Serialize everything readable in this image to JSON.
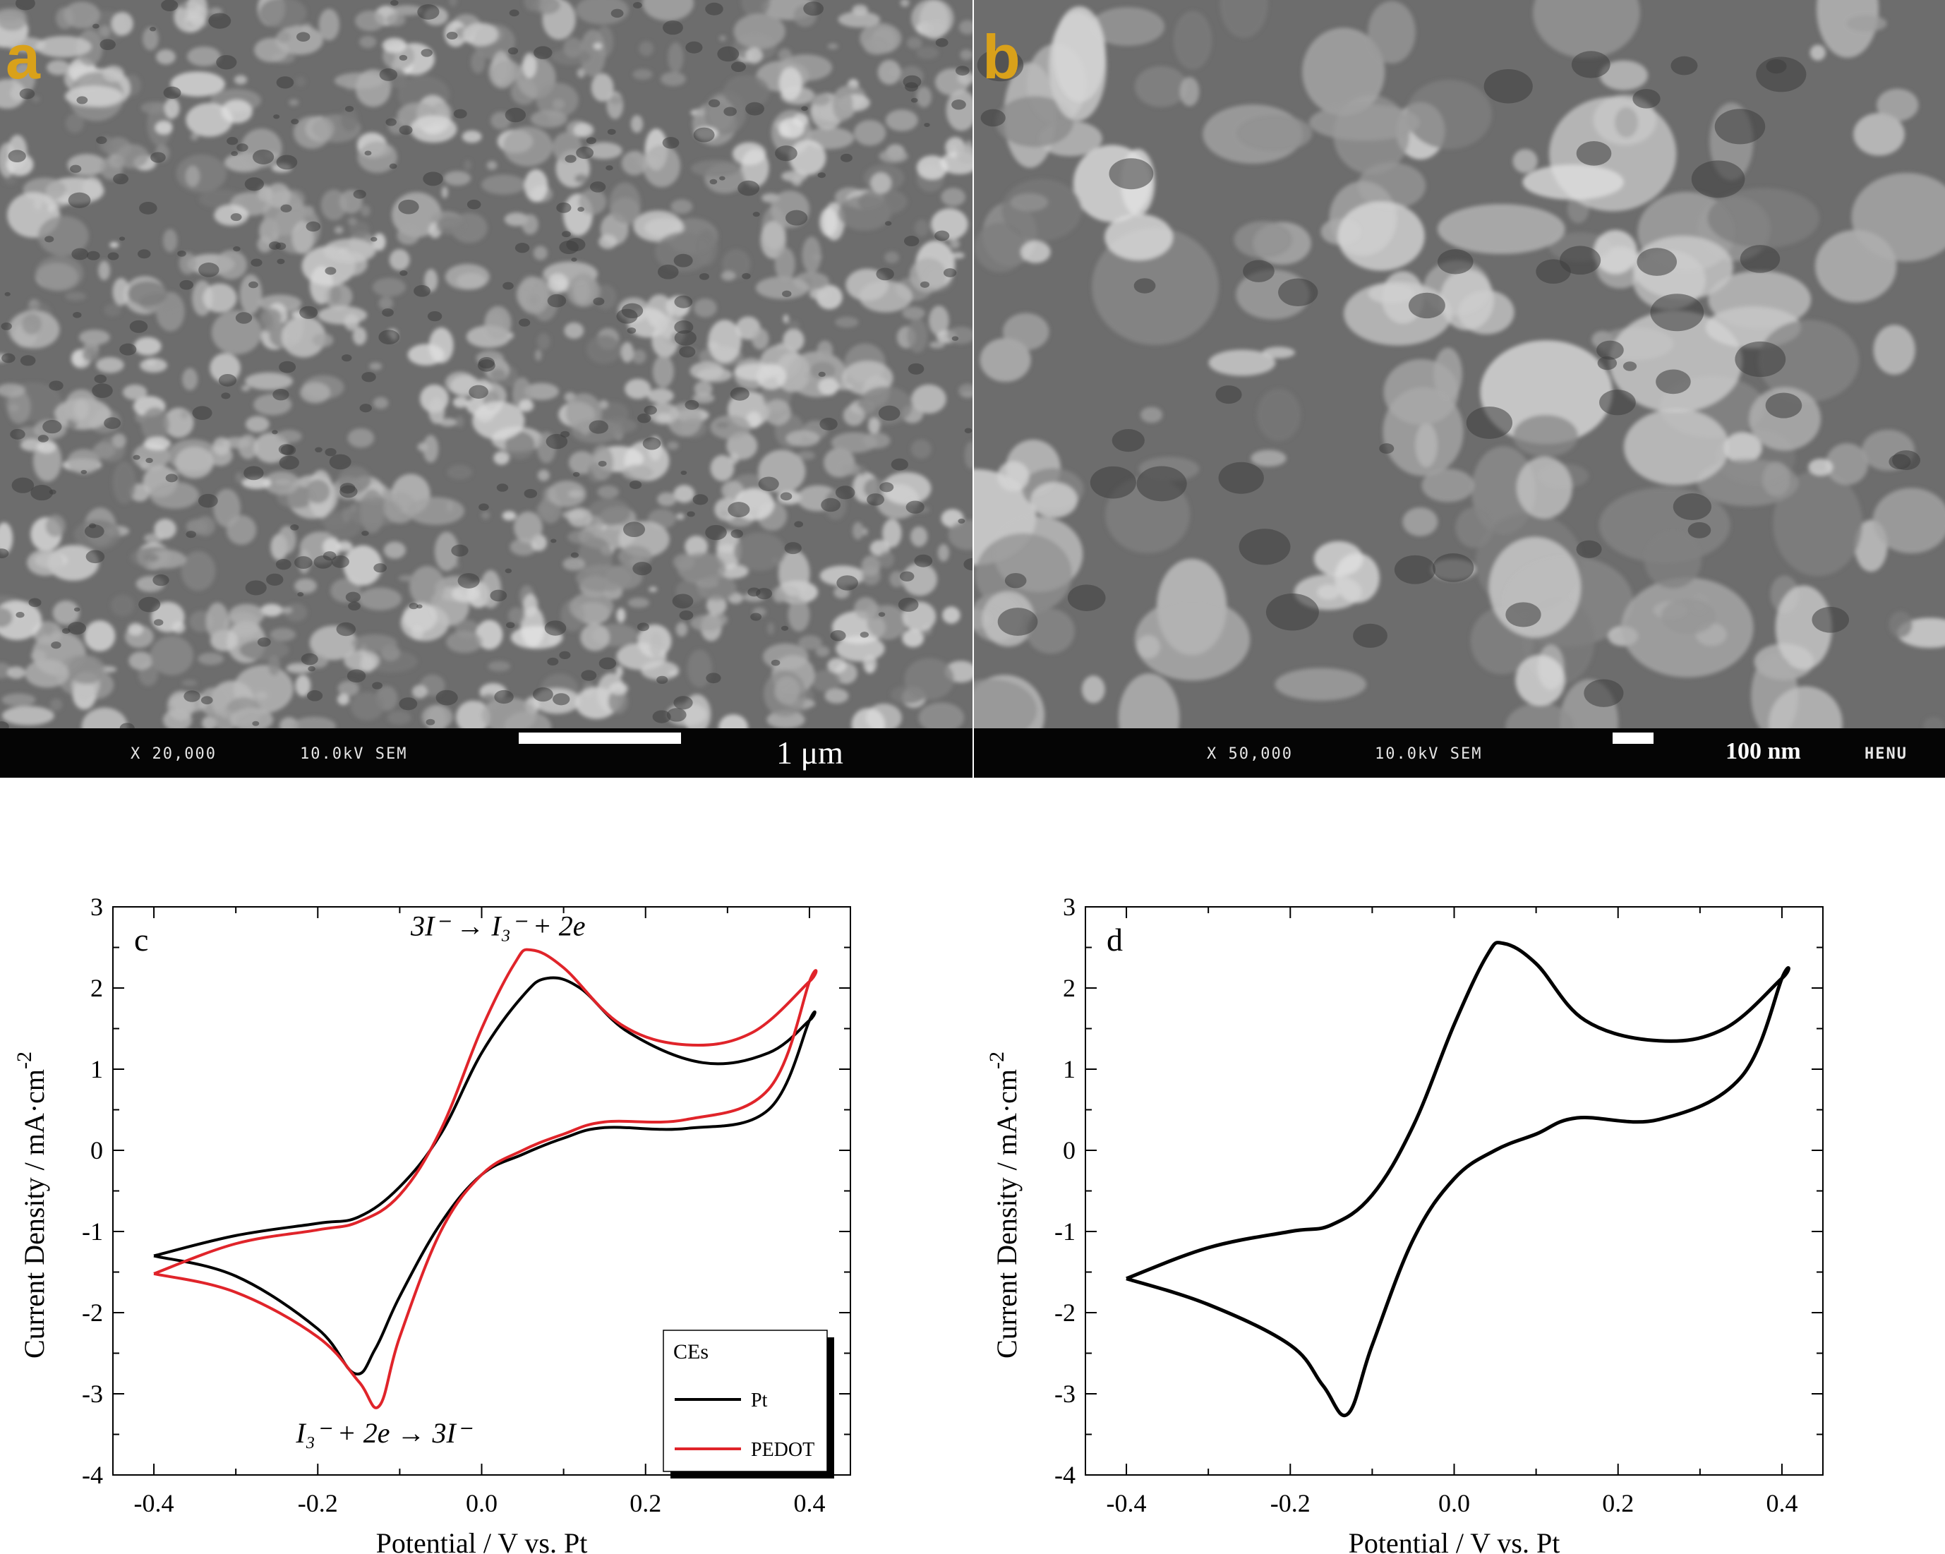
{
  "panels": {
    "a": {
      "letter": "a",
      "magnification": "X 20,000",
      "voltage": "10.0kV SEM",
      "scale_label": "1 μm"
    },
    "b": {
      "letter": "b",
      "magnification": "X 50,000",
      "voltage": "10.0kV SEM",
      "scale_label": "100 nm",
      "operator": "HENU"
    }
  },
  "colors": {
    "Pt": "#000000",
    "PEDOT": "#e0242a",
    "sem_background": "#6d6d6d",
    "sem_highlight": "#d9d9d9",
    "panel_letter": "#d9a11a"
  },
  "chart_data": [
    {
      "id": "c",
      "type": "line",
      "panel_label": "c",
      "xlabel": "Potential / V vs. Pt",
      "ylabel": "Current Density / mA·cm",
      "ylabel_superscript": "-2",
      "xlim": [
        -0.45,
        0.45
      ],
      "ylim": [
        -4,
        3
      ],
      "x_ticks": [
        -0.4,
        -0.2,
        0.0,
        0.2,
        0.4
      ],
      "x_tick_labels": [
        "-0.4",
        "-0.2",
        "0.0",
        "0.2",
        "0.4"
      ],
      "y_ticks": [
        -4,
        -3,
        -2,
        -1,
        0,
        1,
        2,
        3
      ],
      "y_tick_labels": [
        "-4",
        "-3",
        "-2",
        "-1",
        "0",
        "1",
        "2",
        "3"
      ],
      "grid": false,
      "legend_title": "CEs",
      "legend_position": "bottom-right",
      "annotations": [
        {
          "text": "3I⁻ → I₃⁻ + 2e",
          "x": 0.02,
          "y": 2.65
        },
        {
          "text": "I₃⁻ + 2e → 3I⁻",
          "x": -0.12,
          "y": -3.6
        }
      ],
      "series": [
        {
          "name": "Pt",
          "color": "#000000",
          "x": [
            -0.4,
            -0.3,
            -0.2,
            -0.15,
            -0.1,
            -0.05,
            0.0,
            0.05,
            0.08,
            0.12,
            0.18,
            0.27,
            0.35,
            0.4,
            0.4,
            0.35,
            0.25,
            0.15,
            0.1,
            0.05,
            0.0,
            -0.05,
            -0.1,
            -0.13,
            -0.155,
            -0.2,
            -0.3,
            -0.4
          ],
          "y": [
            -1.3,
            -1.05,
            -0.9,
            -0.82,
            -0.45,
            0.2,
            1.2,
            1.9,
            2.12,
            2.0,
            1.45,
            1.08,
            1.2,
            1.6,
            1.6,
            0.5,
            0.27,
            0.28,
            0.15,
            -0.05,
            -0.3,
            -0.9,
            -1.8,
            -2.45,
            -2.75,
            -2.2,
            -1.55,
            -1.3
          ]
        },
        {
          "name": "PEDOT",
          "color": "#e0242a",
          "x": [
            -0.4,
            -0.3,
            -0.2,
            -0.15,
            -0.1,
            -0.05,
            0.0,
            0.04,
            0.06,
            0.1,
            0.17,
            0.25,
            0.33,
            0.4,
            0.4,
            0.35,
            0.25,
            0.15,
            0.1,
            0.05,
            0.0,
            -0.05,
            -0.1,
            -0.125,
            -0.15,
            -0.2,
            -0.3,
            -0.4
          ],
          "y": [
            -1.52,
            -1.15,
            -0.98,
            -0.88,
            -0.55,
            0.25,
            1.5,
            2.3,
            2.47,
            2.25,
            1.55,
            1.3,
            1.45,
            2.08,
            2.08,
            0.75,
            0.38,
            0.35,
            0.2,
            0.0,
            -0.3,
            -1.0,
            -2.3,
            -3.15,
            -2.85,
            -2.3,
            -1.75,
            -1.52
          ]
        }
      ]
    },
    {
      "id": "d",
      "type": "line",
      "panel_label": "d",
      "xlabel": "Potential / V vs. Pt",
      "ylabel": "Current Density / mA·cm",
      "ylabel_superscript": "-2",
      "xlim": [
        -0.45,
        0.45
      ],
      "ylim": [
        -4,
        3
      ],
      "x_ticks": [
        -0.4,
        -0.2,
        0.0,
        0.2,
        0.4
      ],
      "x_tick_labels": [
        "-0.4",
        "-0.2",
        "0.0",
        "0.2",
        "0.4"
      ],
      "y_ticks": [
        -4,
        -3,
        -2,
        -1,
        0,
        1,
        2,
        3
      ],
      "y_tick_labels": [
        "-4",
        "-3",
        "-2",
        "-1",
        "0",
        "1",
        "2",
        "3"
      ],
      "grid": false,
      "series": [
        {
          "color": "#000000",
          "x": [
            -0.4,
            -0.3,
            -0.2,
            -0.15,
            -0.1,
            -0.05,
            0.0,
            0.04,
            0.06,
            0.1,
            0.16,
            0.25,
            0.33,
            0.4,
            0.4,
            0.35,
            0.25,
            0.15,
            0.1,
            0.05,
            0.0,
            -0.05,
            -0.1,
            -0.13,
            -0.16,
            -0.2,
            -0.3,
            -0.4
          ],
          "y": [
            -1.58,
            -1.2,
            -1.0,
            -0.92,
            -0.55,
            0.3,
            1.55,
            2.4,
            2.55,
            2.3,
            1.6,
            1.35,
            1.5,
            2.12,
            2.12,
            0.9,
            0.38,
            0.4,
            0.2,
            0.0,
            -0.35,
            -1.1,
            -2.4,
            -3.25,
            -2.9,
            -2.4,
            -1.9,
            -1.58
          ]
        }
      ]
    }
  ]
}
